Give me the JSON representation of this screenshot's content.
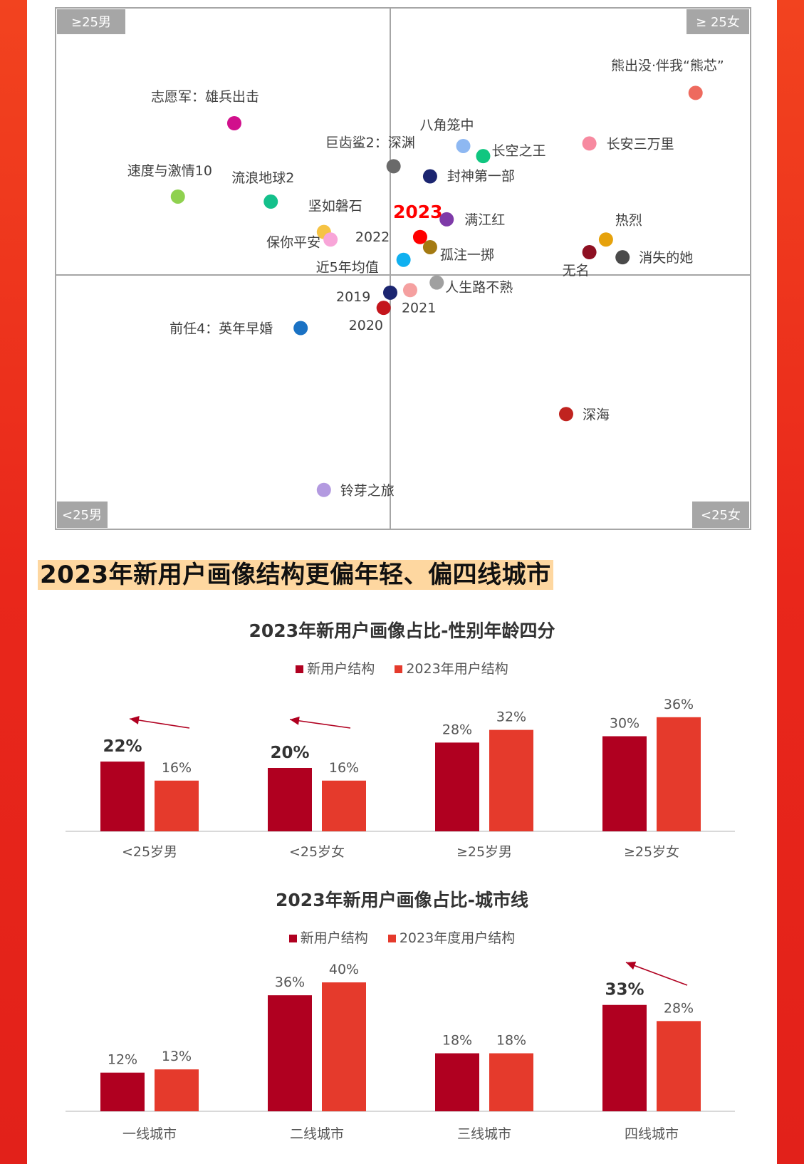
{
  "quadrant_chart": {
    "corner_labels": {
      "top_left": "≥25男",
      "top_right": "≥ 25女",
      "bottom_left": "<25男",
      "bottom_right": "<25女"
    }
  },
  "section_heading": "2023年新用户画像结构更偏年轻、偏四线城市",
  "chart1": {
    "title": "2023年新用户画像占比-性别年龄四分",
    "legend": [
      "新用户结构",
      "2023年用户结构"
    ]
  },
  "chart2": {
    "title": "2023年新用户画像占比-城市线",
    "legend": [
      "新用户结构",
      "2023年度用户结构"
    ]
  },
  "colors": {
    "new_user": "#b00020",
    "year_user": "#e53a2c",
    "heading_bg": "#fed7a0",
    "highlight_2023": "#ff0000",
    "border_red": "#e8261c"
  },
  "chart_data": [
    {
      "type": "scatter",
      "points": [
        {
          "label": "熊出没·伴我“熊芯”",
          "x": 0.92,
          "y": 0.72,
          "color": "#ee6a5e"
        },
        {
          "label": "长安三万里",
          "x": 0.6,
          "y": 0.52,
          "color": "#f78aa0"
        },
        {
          "label": "志愿军：雄兵出击",
          "x": -0.47,
          "y": 0.6,
          "color": "#d1108c"
        },
        {
          "label": "八角笼中",
          "x": 0.22,
          "y": 0.51,
          "color": "#8eb8f2"
        },
        {
          "label": "长空之王",
          "x": 0.28,
          "y": 0.47,
          "color": "#10c680"
        },
        {
          "label": "巨齿鲨2：深渊",
          "x": 0.01,
          "y": 0.43,
          "color": "#6a6a6a"
        },
        {
          "label": "封神第一部",
          "x": 0.12,
          "y": 0.39,
          "color": "#1b2570"
        },
        {
          "label": "速度与激情10",
          "x": -0.64,
          "y": 0.31,
          "color": "#8fd14f"
        },
        {
          "label": "流浪地球2",
          "x": -0.36,
          "y": 0.29,
          "color": "#14c08b"
        },
        {
          "label": "坚如磐石",
          "x": -0.2,
          "y": 0.17,
          "color": "#f6c343"
        },
        {
          "label": "保你平安",
          "x": -0.18,
          "y": 0.14,
          "color": "#f8a5d8"
        },
        {
          "label": "2023",
          "x": 0.09,
          "y": 0.15,
          "color": "#ff0000"
        },
        {
          "label": "满江红",
          "x": 0.17,
          "y": 0.22,
          "color": "#7e3aa8"
        },
        {
          "label": "2022",
          "x": 0.12,
          "y": 0.11,
          "color": "#a47a12"
        },
        {
          "label": "孤注一掷",
          "x": 0.12,
          "y": 0.11,
          "color": "#a47a12"
        },
        {
          "label": "近5年均值",
          "x": 0.04,
          "y": 0.06,
          "color": "#10b0f0"
        },
        {
          "label": "热烈",
          "x": 0.65,
          "y": 0.14,
          "color": "#e6a20c"
        },
        {
          "label": "无名",
          "x": 0.6,
          "y": 0.09,
          "color": "#8e1022"
        },
        {
          "label": "消失的她",
          "x": 0.7,
          "y": 0.07,
          "color": "#4a4a4a"
        },
        {
          "label": "2019",
          "x": 0.0,
          "y": -0.07,
          "color": "#1b2570"
        },
        {
          "label": "2021",
          "x": 0.06,
          "y": -0.06,
          "color": "#f5a0a0"
        },
        {
          "label": "人生路不熟",
          "x": 0.14,
          "y": -0.03,
          "color": "#a0a0a0"
        },
        {
          "label": "2020",
          "x": -0.02,
          "y": -0.13,
          "color": "#c4151c"
        },
        {
          "label": "前任4：英年早婚",
          "x": -0.27,
          "y": -0.21,
          "color": "#1a72c4"
        },
        {
          "label": "深海",
          "x": 0.53,
          "y": -0.55,
          "color": "#c0231f"
        },
        {
          "label": "铃芽之旅",
          "x": -0.2,
          "y": -0.85,
          "color": "#b39ae0"
        }
      ]
    },
    {
      "type": "bar",
      "title": "2023年新用户画像占比-性别年龄四分",
      "categories": [
        "<25岁男",
        "<25岁女",
        "≥25岁男",
        "≥25岁女"
      ],
      "series": [
        {
          "name": "新用户结构",
          "values": [
            22,
            20,
            28,
            30
          ],
          "labels": [
            "22%",
            "20%",
            "28%",
            "30%"
          ]
        },
        {
          "name": "2023年用户结构",
          "values": [
            16,
            16,
            32,
            36
          ],
          "labels": [
            "16%",
            "16%",
            "32%",
            "36%"
          ]
        }
      ],
      "ylim": [
        0,
        40
      ]
    },
    {
      "type": "bar",
      "title": "2023年新用户画像占比-城市线",
      "categories": [
        "一线城市",
        "二线城市",
        "三线城市",
        "四线城市"
      ],
      "series": [
        {
          "name": "新用户结构",
          "values": [
            12,
            36,
            18,
            33
          ],
          "labels": [
            "12%",
            "36%",
            "18%",
            "33%"
          ]
        },
        {
          "name": "2023年度用户结构",
          "values": [
            13,
            40,
            18,
            28
          ],
          "labels": [
            "13%",
            "40%",
            "18%",
            "28%"
          ]
        }
      ],
      "ylim": [
        0,
        42
      ]
    }
  ]
}
